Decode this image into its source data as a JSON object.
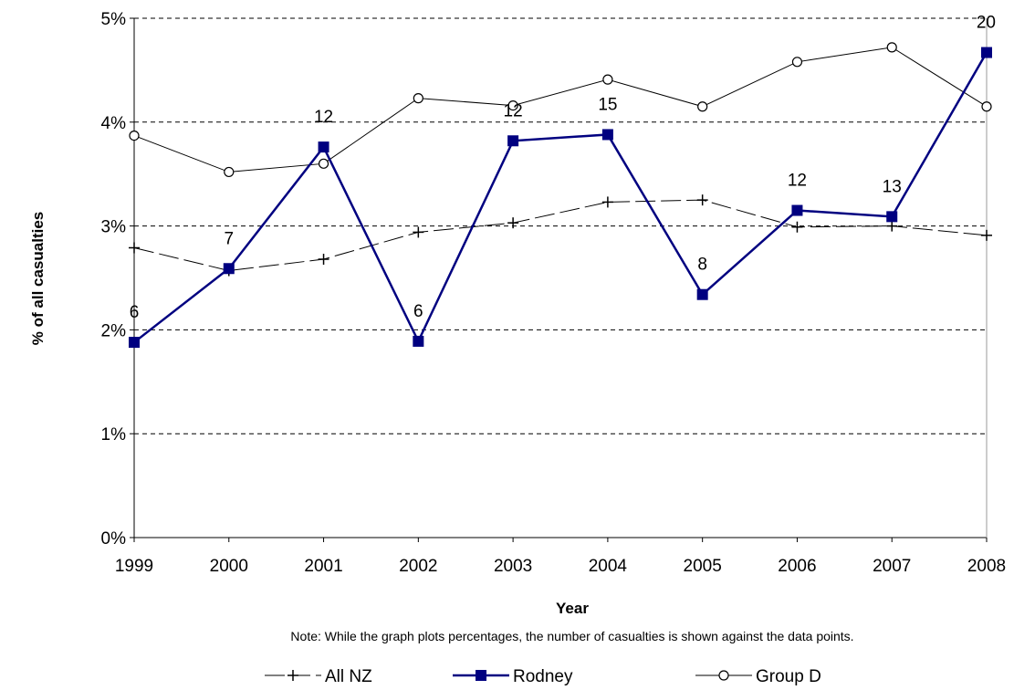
{
  "chart_data": {
    "type": "line",
    "title": "",
    "xlabel": "Year",
    "ylabel": "% of all casualties",
    "note": "Note: While the graph plots percentages, the number of casualties is shown against the data points.",
    "categories": [
      "1999",
      "2000",
      "2001",
      "2002",
      "2003",
      "2004",
      "2005",
      "2006",
      "2007",
      "2008"
    ],
    "ylim": [
      0,
      5
    ],
    "yticks": [
      "0%",
      "1%",
      "2%",
      "3%",
      "4%",
      "5%"
    ],
    "grid": "horizontal dashed",
    "legend_position": "bottom",
    "series": [
      {
        "name": "All NZ",
        "marker": "plus",
        "line_style": "dashed",
        "color": "#000000",
        "values": [
          2.79,
          2.57,
          2.68,
          2.94,
          3.03,
          3.23,
          3.25,
          2.99,
          3.0,
          2.91
        ]
      },
      {
        "name": "Rodney",
        "marker": "square",
        "line_style": "solid",
        "color": "#000080",
        "values": [
          1.88,
          2.59,
          3.76,
          1.89,
          3.82,
          3.88,
          2.34,
          3.15,
          3.09,
          4.67
        ],
        "data_labels": [
          "6",
          "7",
          "12",
          "6",
          "12",
          "15",
          "8",
          "12",
          "13",
          "20"
        ]
      },
      {
        "name": "Group D",
        "marker": "open-circle",
        "line_style": "solid",
        "color": "#000000",
        "values": [
          3.87,
          3.52,
          3.6,
          4.23,
          4.16,
          4.41,
          4.15,
          4.58,
          4.72,
          4.15
        ]
      }
    ]
  }
}
